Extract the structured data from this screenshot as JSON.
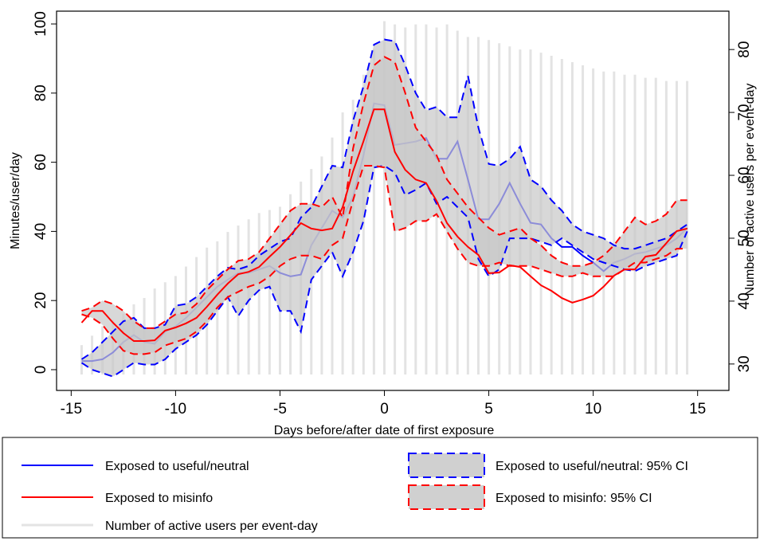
{
  "chart_data": {
    "type": "line",
    "x_label": "Days before/after date of first exposure",
    "y_label": "Minutes/user/day",
    "y2_label": "Number of active users per event-day",
    "x": [
      -14.5,
      -14,
      -13.5,
      -13,
      -12.5,
      -12,
      -11.5,
      -11,
      -10.5,
      -10,
      -9.5,
      -9,
      -8.5,
      -8,
      -7.5,
      -7,
      -6.5,
      -6,
      -5.5,
      -5,
      -4.5,
      -4,
      -3.5,
      -3,
      -2.5,
      -2,
      -1.5,
      -1,
      -0.5,
      0,
      0.5,
      1,
      1.5,
      2,
      2.5,
      3,
      3.5,
      4,
      4.5,
      5,
      5.5,
      6,
      6.5,
      7,
      7.5,
      8,
      8.5,
      9,
      9.5,
      10,
      10.5,
      11,
      11.5,
      12,
      12.5,
      13,
      13.5,
      14,
      14.5
    ],
    "xlim": [
      -15.7,
      16.5
    ],
    "xticks": [
      -15,
      -10,
      -5,
      0,
      5,
      10,
      15
    ],
    "ylim": [
      -6,
      103.7
    ],
    "yticks": [
      0,
      20,
      40,
      60,
      80,
      100
    ],
    "y2lim": [
      25.8,
      86.1
    ],
    "y2ticks": [
      30,
      40,
      50,
      60,
      70,
      80
    ],
    "legend": "bottom",
    "series": [
      {
        "name": "Exposed to useful/neutral",
        "color": "#0000ff",
        "style": "line",
        "values": [
          2.5,
          2.5,
          3,
          5,
          8,
          10,
          8,
          7.5,
          11,
          12.5,
          15,
          18,
          21,
          24,
          26,
          28,
          28,
          29,
          30,
          28,
          27,
          27.5,
          36,
          41,
          46,
          44,
          50,
          62,
          77,
          76.5,
          65,
          65.5,
          66,
          67,
          61,
          61,
          66,
          55,
          43.5,
          43.5,
          48,
          54,
          48,
          42.5,
          42,
          38,
          35.5,
          35.5,
          33,
          31,
          28.5,
          31,
          32,
          33.5,
          34,
          35,
          36,
          38,
          41
        ]
      },
      {
        "name": "Exposed to misinfo",
        "color": "#ff0000",
        "style": "line",
        "values": [
          13.6,
          17,
          17,
          13.6,
          10.6,
          8.3,
          8.3,
          8.5,
          11.3,
          12.2,
          13.4,
          15,
          18.2,
          21.7,
          24.9,
          27.6,
          28.3,
          29.7,
          32.7,
          35.5,
          38.9,
          42.4,
          40.8,
          40.3,
          40.8,
          47,
          57.4,
          66.1,
          75.3,
          75.3,
          63,
          57.8,
          55,
          54,
          48.8,
          42.4,
          38.5,
          35.5,
          33.2,
          27.9,
          28.1,
          30.2,
          29.7,
          27,
          24.4,
          22.8,
          20.7,
          19.4,
          20.3,
          21.4,
          24,
          27.2,
          29,
          29,
          32.7,
          33.2,
          36.6,
          40.1,
          40.8
        ]
      },
      {
        "name": "Number of active users per event-day",
        "color": "#e3e3e3",
        "style": "bar",
        "axis": "y2",
        "values": [
          33,
          34.5,
          36,
          37,
          38,
          39.5,
          40.5,
          42,
          43,
          44,
          45.5,
          47,
          48.5,
          49.5,
          51,
          52,
          53,
          54,
          54.5,
          55,
          57,
          59,
          61,
          63,
          66,
          70,
          72,
          76,
          80,
          84.5,
          84,
          83.5,
          84,
          84,
          83.5,
          84,
          83,
          82,
          82,
          81.5,
          81,
          80.5,
          80,
          80,
          79.5,
          79,
          78.5,
          78,
          77.5,
          77,
          76.5,
          76.5,
          76,
          76,
          75.5,
          75.5,
          75,
          75,
          75
        ]
      }
    ],
    "bands": [
      {
        "name": "Exposed to useful/neutral: 95% CI",
        "color": "#0000ff",
        "upper": [
          3,
          5,
          8,
          11,
          14,
          15,
          12,
          12,
          13,
          18.5,
          19,
          21,
          24,
          27,
          29.5,
          29,
          30,
          33,
          35,
          37,
          38,
          44,
          47,
          53,
          59,
          58.5,
          72,
          82,
          94,
          95.5,
          95,
          88,
          80,
          75,
          76,
          73,
          73,
          85,
          70,
          59.5,
          59,
          61,
          64.5,
          55,
          53,
          49,
          46,
          42,
          40,
          39,
          38,
          36,
          35,
          35,
          36,
          37,
          38,
          40,
          42
        ],
        "lower": [
          2,
          0,
          -1,
          -2,
          0,
          2,
          1.5,
          1.5,
          3,
          6,
          8,
          10,
          13,
          17,
          21,
          15.5,
          20,
          23,
          24,
          17,
          17,
          11,
          26,
          30,
          34,
          27,
          34,
          43,
          58.5,
          59,
          57,
          50.5,
          52,
          54,
          48,
          50,
          47,
          44,
          32,
          27,
          29,
          38,
          38,
          38,
          37,
          36,
          38,
          36,
          34,
          32,
          31,
          30,
          29,
          28.5,
          30,
          31,
          32,
          33,
          40
        ]
      },
      {
        "name": "Exposed to misinfo: 95% CI",
        "color": "#ff0000",
        "upper": [
          17,
          18,
          20,
          19,
          17,
          14,
          12,
          12,
          14,
          16,
          16.5,
          19,
          23,
          26,
          29,
          31.5,
          32,
          34,
          38,
          42,
          46,
          48,
          48,
          47,
          50,
          44,
          64,
          77,
          88,
          90.5,
          89,
          80,
          70,
          66,
          62,
          55,
          51,
          47,
          44,
          41,
          39,
          40,
          41,
          38,
          36,
          33,
          31,
          30,
          30,
          31,
          33,
          36,
          40,
          44,
          42,
          43,
          45,
          49,
          49
        ],
        "lower": [
          16,
          15,
          13,
          9,
          5.5,
          4.5,
          4.5,
          5,
          7,
          8,
          9,
          11,
          14,
          18,
          21,
          22.5,
          24,
          25,
          27,
          30,
          32,
          33,
          33,
          32,
          36,
          38,
          49,
          59,
          59,
          58.5,
          40,
          41,
          43,
          43,
          45,
          40,
          35,
          31,
          30,
          30,
          31,
          30,
          30,
          30,
          29,
          28,
          27,
          27,
          28,
          27,
          27,
          27,
          29,
          31,
          31,
          32,
          33,
          35,
          35
        ]
      }
    ]
  }
}
